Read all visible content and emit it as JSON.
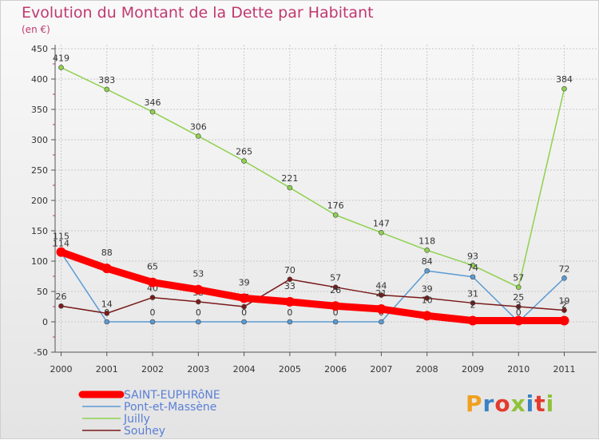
{
  "title": "Evolution du Montant de la Dette par Habitant",
  "unit": "(en €)",
  "logo": "Proxiti",
  "chart_data": {
    "type": "line",
    "title": "Evolution du Montant de la Dette par Habitant",
    "ylabel": "(en €)",
    "xlabel": "",
    "ylim": [
      -50,
      450
    ],
    "yticks": [
      -50,
      0,
      50,
      100,
      150,
      200,
      250,
      300,
      350,
      400,
      450
    ],
    "grid": true,
    "legend": "bottom-left",
    "categories": [
      "2000",
      "2001",
      "2002",
      "2003",
      "2004",
      "2005",
      "2006",
      "2007",
      "2008",
      "2009",
      "2010",
      "2011"
    ],
    "series": [
      {
        "name": "Juilly",
        "color": "#8fd14f",
        "values": [
          419,
          383,
          346,
          306,
          265,
          221,
          176,
          147,
          118,
          93,
          57,
          384
        ]
      },
      {
        "name": "Pont-et-Massène",
        "color": "#5a9bd4",
        "values": [
          114,
          0,
          0,
          0,
          0,
          0,
          0,
          0,
          84,
          74,
          0,
          72
        ]
      },
      {
        "name": "Souhey",
        "color": "#7a1a1a",
        "values": [
          26,
          14,
          40,
          33,
          25,
          70,
          57,
          44,
          39,
          31,
          25,
          19
        ]
      },
      {
        "name": "SAINT-EUPHRôNE",
        "color": "#ff0000",
        "values": [
          115,
          88,
          65,
          53,
          39,
          33,
          26,
          21,
          10,
          2,
          2,
          2
        ]
      }
    ]
  }
}
